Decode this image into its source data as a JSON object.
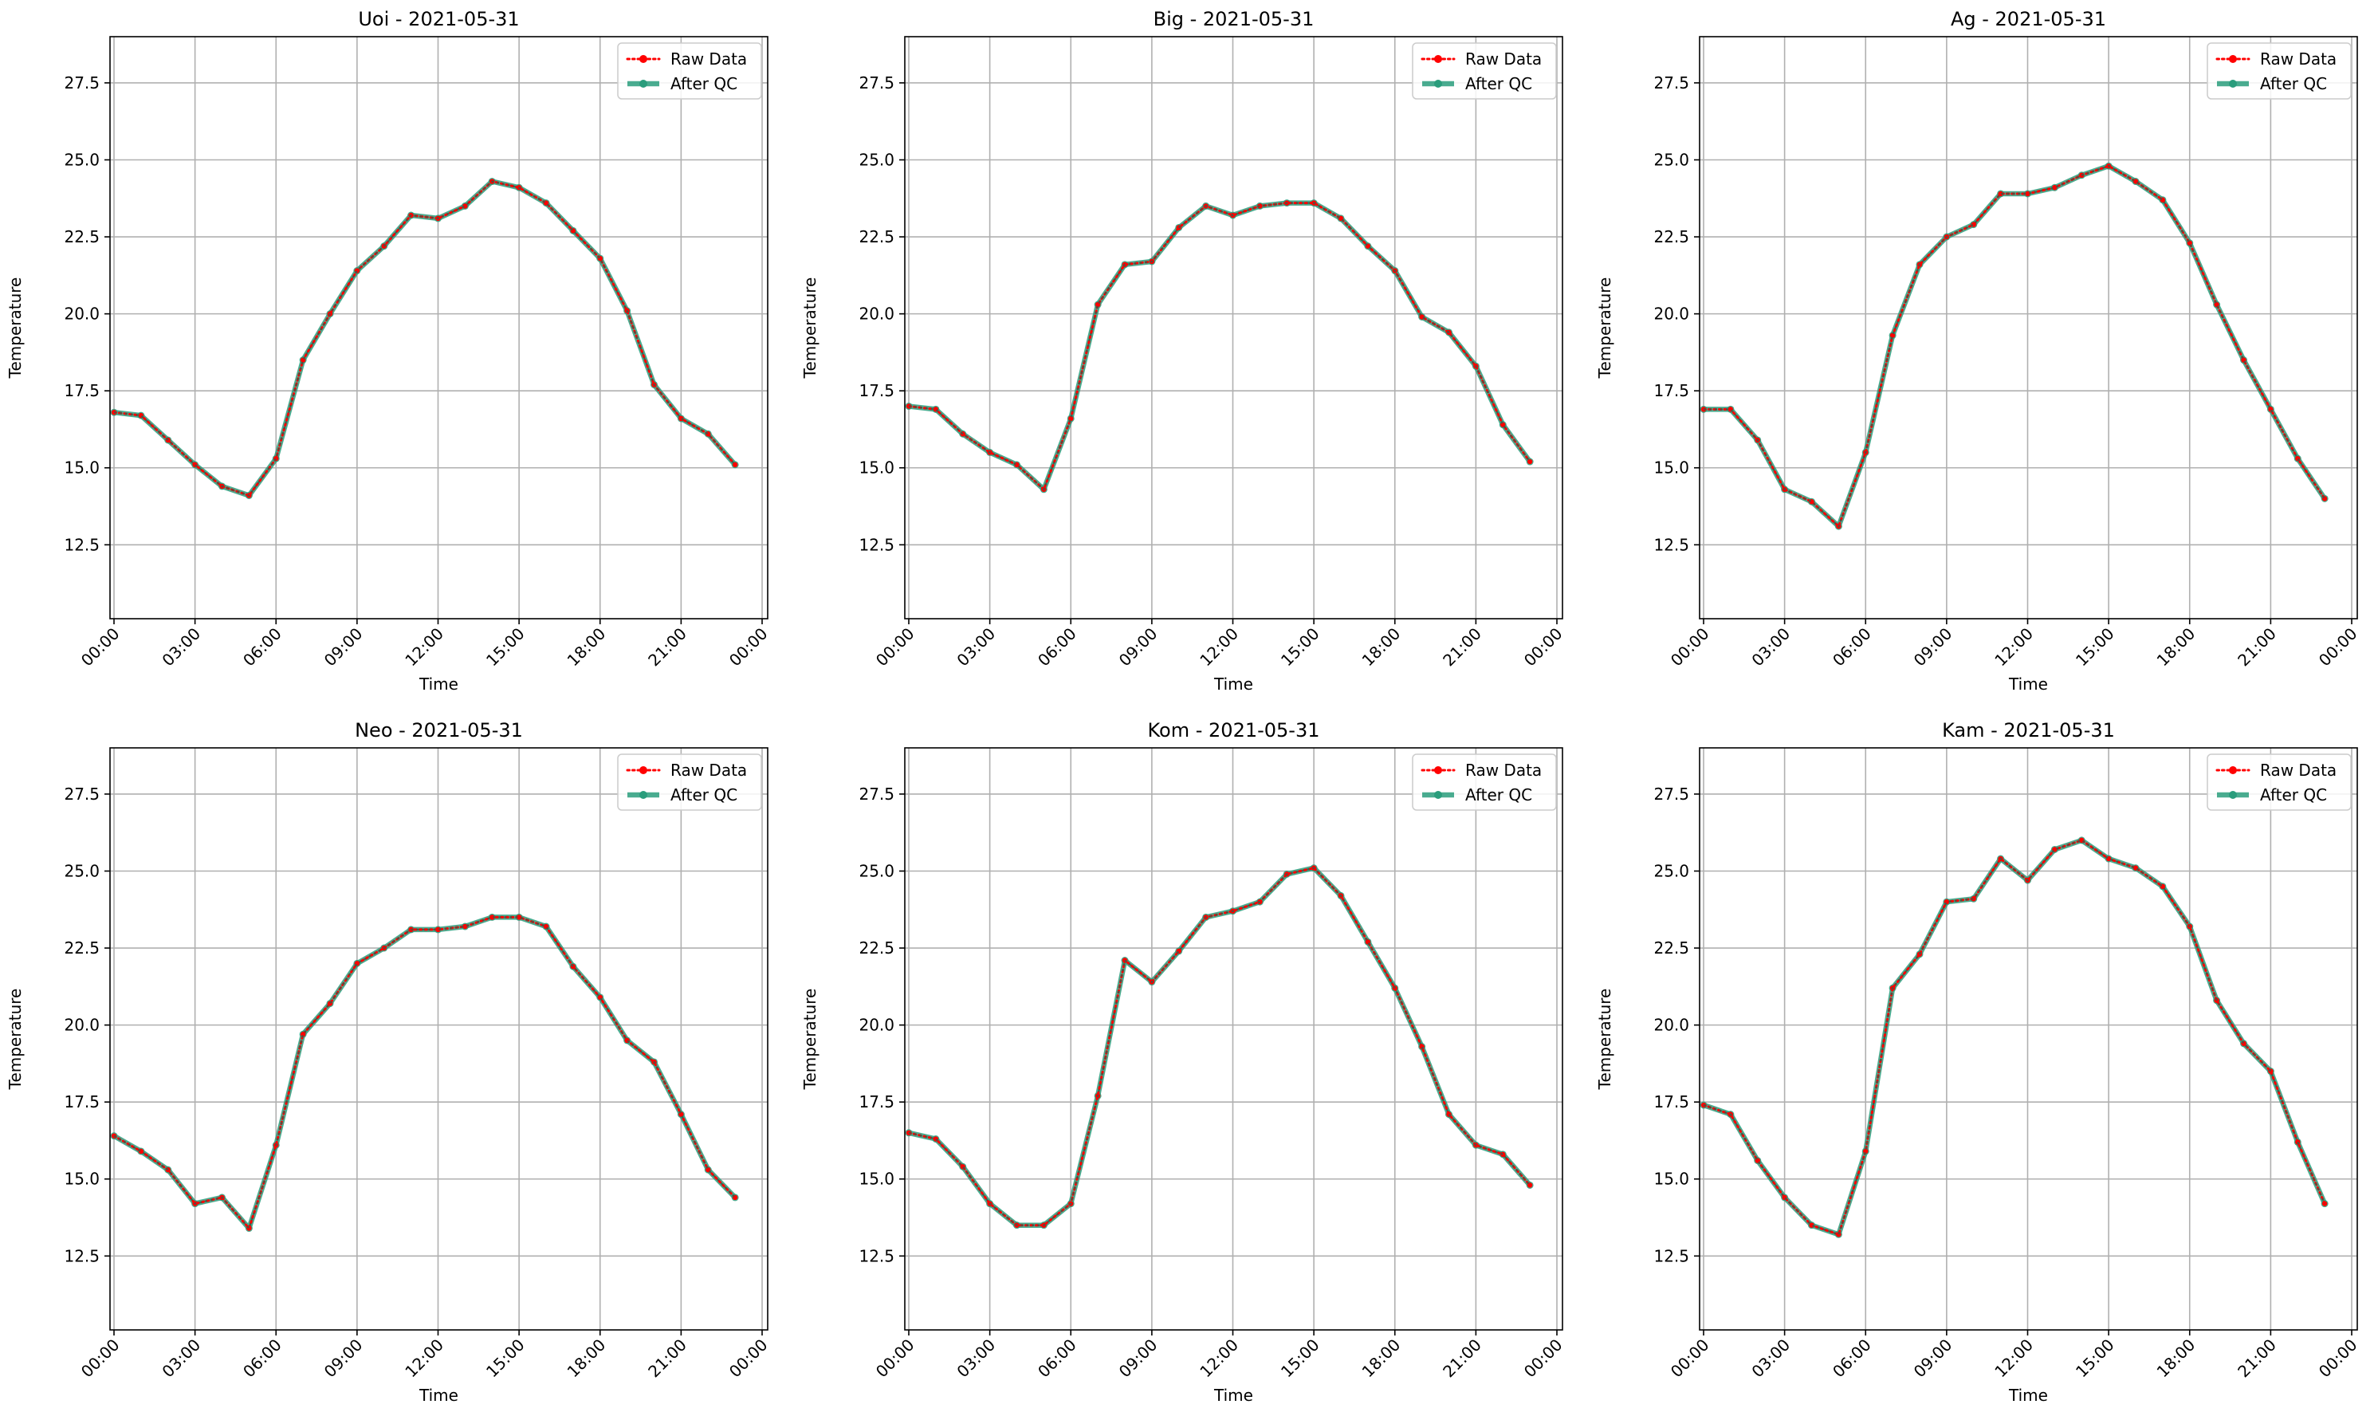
{
  "chart_data": [
    {
      "type": "line",
      "title": "Uoi - 2021-05-31",
      "xlabel": "Time",
      "ylabel": "Temperature",
      "ylim": [
        10.1,
        29.0
      ],
      "yticks": [
        "12.5",
        "15.0",
        "17.5",
        "20.0",
        "22.5",
        "25.0",
        "27.5"
      ],
      "xticks": [
        "00:00",
        "03:00",
        "06:00",
        "09:00",
        "12:00",
        "15:00",
        "18:00",
        "21:00",
        "00:00"
      ],
      "grid": true,
      "legend_position": "top-right",
      "series": [
        {
          "name": "Raw Data",
          "color": "#ff0000",
          "style": "dotted",
          "values": [
            16.8,
            16.7,
            15.9,
            15.1,
            14.4,
            14.1,
            15.3,
            18.5,
            20.0,
            21.4,
            22.2,
            23.2,
            23.1,
            23.5,
            24.3,
            24.1,
            23.6,
            22.7,
            21.8,
            20.1,
            17.7,
            16.6,
            16.1,
            15.1
          ]
        },
        {
          "name": "After QC",
          "color": "#2a9d7c",
          "style": "solid",
          "values": [
            16.8,
            16.7,
            15.9,
            15.1,
            14.4,
            14.1,
            15.3,
            18.5,
            20.0,
            21.4,
            22.2,
            23.2,
            23.1,
            23.5,
            24.3,
            24.1,
            23.6,
            22.7,
            21.8,
            20.1,
            17.7,
            16.6,
            16.1,
            15.1
          ]
        }
      ]
    },
    {
      "type": "line",
      "title": "Big - 2021-05-31",
      "xlabel": "Time",
      "ylabel": "Temperature",
      "ylim": [
        10.1,
        29.0
      ],
      "yticks": [
        "12.5",
        "15.0",
        "17.5",
        "20.0",
        "22.5",
        "25.0",
        "27.5"
      ],
      "xticks": [
        "00:00",
        "03:00",
        "06:00",
        "09:00",
        "12:00",
        "15:00",
        "18:00",
        "21:00",
        "00:00"
      ],
      "grid": true,
      "legend_position": "top-right",
      "series": [
        {
          "name": "Raw Data",
          "color": "#ff0000",
          "style": "dotted",
          "values": [
            17.0,
            16.9,
            16.1,
            15.5,
            15.1,
            14.3,
            16.6,
            20.3,
            21.6,
            21.7,
            22.8,
            23.5,
            23.2,
            23.5,
            23.6,
            23.6,
            23.1,
            22.2,
            21.4,
            19.9,
            19.4,
            18.3,
            16.4,
            15.2
          ]
        },
        {
          "name": "After QC",
          "color": "#2a9d7c",
          "style": "solid",
          "values": [
            17.0,
            16.9,
            16.1,
            15.5,
            15.1,
            14.3,
            16.6,
            20.3,
            21.6,
            21.7,
            22.8,
            23.5,
            23.2,
            23.5,
            23.6,
            23.6,
            23.1,
            22.2,
            21.4,
            19.9,
            19.4,
            18.3,
            16.4,
            15.2
          ]
        }
      ]
    },
    {
      "type": "line",
      "title": "Ag - 2021-05-31",
      "xlabel": "Time",
      "ylabel": "Temperature",
      "ylim": [
        10.1,
        29.0
      ],
      "yticks": [
        "12.5",
        "15.0",
        "17.5",
        "20.0",
        "22.5",
        "25.0",
        "27.5"
      ],
      "xticks": [
        "00:00",
        "03:00",
        "06:00",
        "09:00",
        "12:00",
        "15:00",
        "18:00",
        "21:00",
        "00:00"
      ],
      "grid": true,
      "legend_position": "top-right",
      "series": [
        {
          "name": "Raw Data",
          "color": "#ff0000",
          "style": "dotted",
          "values": [
            16.9,
            16.9,
            15.9,
            14.3,
            13.9,
            13.1,
            15.5,
            19.3,
            21.6,
            22.5,
            22.9,
            23.9,
            23.9,
            24.1,
            24.5,
            24.8,
            24.3,
            23.7,
            22.3,
            20.3,
            18.5,
            16.9,
            15.3,
            14.0
          ]
        },
        {
          "name": "After QC",
          "color": "#2a9d7c",
          "style": "solid",
          "values": [
            16.9,
            16.9,
            15.9,
            14.3,
            13.9,
            13.1,
            15.5,
            19.3,
            21.6,
            22.5,
            22.9,
            23.9,
            23.9,
            24.1,
            24.5,
            24.8,
            24.3,
            23.7,
            22.3,
            20.3,
            18.5,
            16.9,
            15.3,
            14.0
          ]
        }
      ]
    },
    {
      "type": "line",
      "title": "Neo - 2021-05-31",
      "xlabel": "Time",
      "ylabel": "Temperature",
      "ylim": [
        10.1,
        29.0
      ],
      "yticks": [
        "12.5",
        "15.0",
        "17.5",
        "20.0",
        "22.5",
        "25.0",
        "27.5"
      ],
      "xticks": [
        "00:00",
        "03:00",
        "06:00",
        "09:00",
        "12:00",
        "15:00",
        "18:00",
        "21:00",
        "00:00"
      ],
      "grid": true,
      "legend_position": "top-right",
      "series": [
        {
          "name": "Raw Data",
          "color": "#ff0000",
          "style": "dotted",
          "values": [
            16.4,
            15.9,
            15.3,
            14.2,
            14.4,
            13.4,
            16.1,
            19.7,
            20.7,
            22.0,
            22.5,
            23.1,
            23.1,
            23.2,
            23.5,
            23.5,
            23.2,
            21.9,
            20.9,
            19.5,
            18.8,
            17.1,
            15.3,
            14.4
          ]
        },
        {
          "name": "After QC",
          "color": "#2a9d7c",
          "style": "solid",
          "values": [
            16.4,
            15.9,
            15.3,
            14.2,
            14.4,
            13.4,
            16.1,
            19.7,
            20.7,
            22.0,
            22.5,
            23.1,
            23.1,
            23.2,
            23.5,
            23.5,
            23.2,
            21.9,
            20.9,
            19.5,
            18.8,
            17.1,
            15.3,
            14.4
          ]
        }
      ]
    },
    {
      "type": "line",
      "title": "Kom - 2021-05-31",
      "xlabel": "Time",
      "ylabel": "Temperature",
      "ylim": [
        10.1,
        29.0
      ],
      "yticks": [
        "12.5",
        "15.0",
        "17.5",
        "20.0",
        "22.5",
        "25.0",
        "27.5"
      ],
      "xticks": [
        "00:00",
        "03:00",
        "06:00",
        "09:00",
        "12:00",
        "15:00",
        "18:00",
        "21:00",
        "00:00"
      ],
      "grid": true,
      "legend_position": "top-right",
      "series": [
        {
          "name": "Raw Data",
          "color": "#ff0000",
          "style": "dotted",
          "values": [
            16.5,
            16.3,
            15.4,
            14.2,
            13.5,
            13.5,
            14.2,
            17.7,
            22.1,
            21.4,
            22.4,
            23.5,
            23.7,
            24.0,
            24.9,
            25.1,
            24.2,
            22.7,
            21.2,
            19.3,
            17.1,
            16.1,
            15.8,
            14.8
          ]
        },
        {
          "name": "After QC",
          "color": "#2a9d7c",
          "style": "solid",
          "values": [
            16.5,
            16.3,
            15.4,
            14.2,
            13.5,
            13.5,
            14.2,
            17.7,
            22.1,
            21.4,
            22.4,
            23.5,
            23.7,
            24.0,
            24.9,
            25.1,
            24.2,
            22.7,
            21.2,
            19.3,
            17.1,
            16.1,
            15.8,
            14.8
          ]
        }
      ]
    },
    {
      "type": "line",
      "title": "Kam - 2021-05-31",
      "xlabel": "Time",
      "ylabel": "Temperature",
      "ylim": [
        10.1,
        29.0
      ],
      "yticks": [
        "12.5",
        "15.0",
        "17.5",
        "20.0",
        "22.5",
        "25.0",
        "27.5"
      ],
      "xticks": [
        "00:00",
        "03:00",
        "06:00",
        "09:00",
        "12:00",
        "15:00",
        "18:00",
        "21:00",
        "00:00"
      ],
      "grid": true,
      "legend_position": "top-right",
      "series": [
        {
          "name": "Raw Data",
          "color": "#ff0000",
          "style": "dotted",
          "values": [
            17.4,
            17.1,
            15.6,
            14.4,
            13.5,
            13.2,
            15.9,
            21.2,
            22.3,
            24.0,
            24.1,
            25.4,
            24.7,
            25.7,
            26.0,
            25.4,
            25.1,
            24.5,
            23.2,
            20.8,
            19.4,
            18.5,
            16.2,
            14.2
          ]
        },
        {
          "name": "After QC",
          "color": "#2a9d7c",
          "style": "solid",
          "values": [
            17.4,
            17.1,
            15.6,
            14.4,
            13.5,
            13.2,
            15.9,
            21.2,
            22.3,
            24.0,
            24.1,
            25.4,
            24.7,
            25.7,
            26.0,
            25.4,
            25.1,
            24.5,
            23.2,
            20.8,
            19.4,
            18.5,
            16.2,
            14.2
          ]
        }
      ]
    }
  ]
}
